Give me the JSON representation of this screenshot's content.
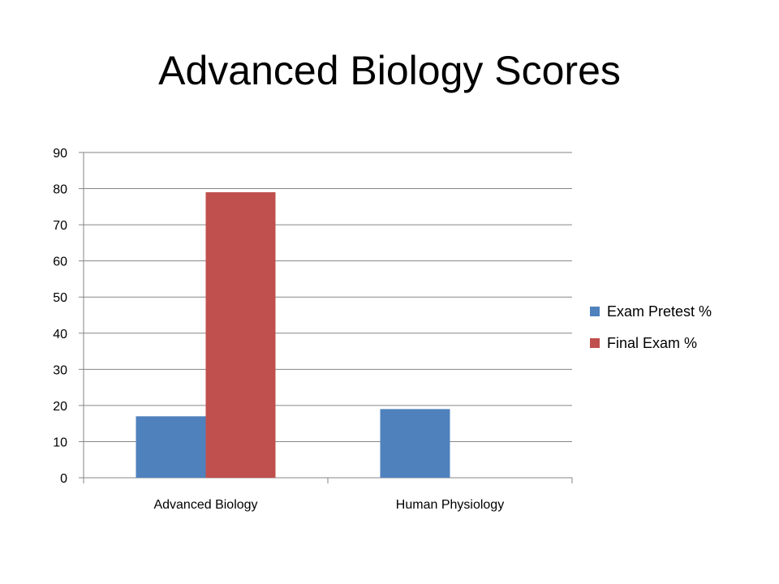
{
  "slide": {
    "title": "Advanced Biology Scores"
  },
  "chart_data": {
    "type": "bar",
    "title": "",
    "xlabel": "",
    "ylabel": "",
    "categories": [
      "Advanced Biology",
      "Human Physiology"
    ],
    "series": [
      {
        "name": "Exam Pretest %",
        "values": [
          17,
          19
        ],
        "color": "#4F81BD"
      },
      {
        "name": "Final Exam %",
        "values": [
          79,
          null
        ],
        "color": "#C0504D"
      }
    ],
    "ylim": [
      0,
      90
    ],
    "yticks": [
      0,
      10,
      20,
      30,
      40,
      50,
      60,
      70,
      80,
      90
    ],
    "grid": true,
    "legend_position": "right",
    "colors": {
      "gridline": "#868686",
      "axis": "#868686"
    }
  }
}
